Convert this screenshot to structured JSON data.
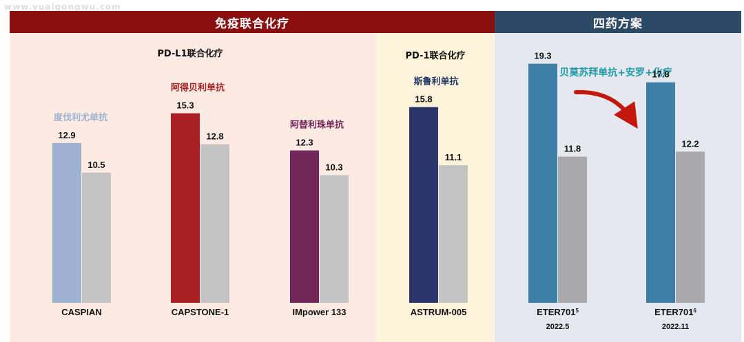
{
  "watermark": "www.yuaigongwu.com",
  "header": {
    "left_band": "免疫联合化疗",
    "right_band": "四药方案"
  },
  "group_labels": {
    "pdl1": "PD-L1联合化疗",
    "pd1": "PD-1联合化疗",
    "four_drug": "贝莫苏拜单抗+安罗+化疗"
  },
  "colors": {
    "band_left": "#8b0e0e",
    "band_right": "#2c4a63",
    "panel_a": "#fdebe3",
    "panel_b": "#fdf3da",
    "panel_c": "#e5e8ee",
    "control_bar": "#c3c3c3",
    "control_bar_dark": "#a9a9ad",
    "arrow": "#c4170e"
  },
  "chart_data": {
    "type": "bar",
    "title": "",
    "xlabel": "",
    "ylabel": "",
    "ylim": [
      0,
      20
    ],
    "grid": false,
    "legend": "none",
    "categories": [
      {
        "name": "CASPIAN",
        "drug": "度伐利尤单抗",
        "drug_color": "#9eb3cf",
        "sub": "",
        "sup": "",
        "treatment": 12.9,
        "control": 10.5,
        "treatment_color": "#9eb3cf"
      },
      {
        "name": "CAPSTONE-1",
        "drug": "阿得贝利单抗",
        "drug_color": "#a61e22",
        "sub": "",
        "sup": "",
        "treatment": 15.3,
        "control": 12.8,
        "treatment_color": "#a81e22"
      },
      {
        "name": "IMpower 133",
        "drug": "阿替利珠单抗",
        "drug_color": "#74275a",
        "sub": "",
        "sup": "",
        "treatment": 12.3,
        "control": 10.3,
        "treatment_color": "#72275a"
      },
      {
        "name": "ASTRUM-005",
        "drug": "斯鲁利单抗",
        "drug_color": "#243968",
        "sub": "",
        "sup": "",
        "treatment": 15.8,
        "control": 11.1,
        "treatment_color": "#2a3669"
      },
      {
        "name": "ETER701",
        "drug": "",
        "drug_color": "",
        "sub": "2022.5",
        "sup": "5",
        "treatment": 19.3,
        "control": 11.8,
        "treatment_color": "#3f7fa5"
      },
      {
        "name": "ETER701",
        "drug": "",
        "drug_color": "",
        "sub": "2022.11",
        "sup": "6",
        "treatment": 17.8,
        "control": 12.2,
        "treatment_color": "#3f7fa5"
      }
    ]
  }
}
